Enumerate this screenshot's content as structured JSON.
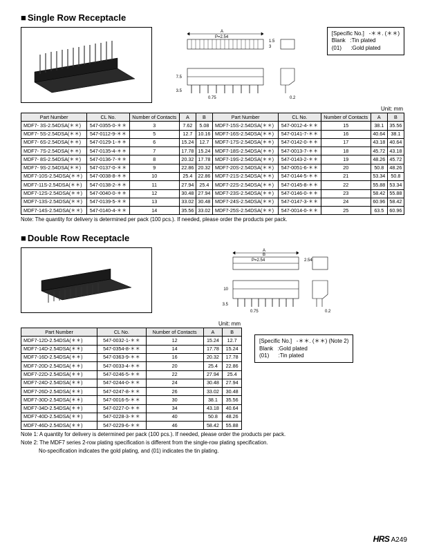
{
  "section1": {
    "title": "Single Row Receptacle",
    "specbox": {
      "l1": "[Specific No.]   -＊＊. (＊＊)",
      "l2": "Blank   :Tin plated",
      "l3": "(01)      :Gold plated"
    },
    "unit": "Unit: mm",
    "headers": [
      "Part Number",
      "CL No.",
      "Number of Contacts",
      "A",
      "B",
      "Part Number",
      "CL No.",
      "Number of Contacts",
      "A",
      "B"
    ],
    "rows": [
      [
        "MDF7-  3S-2.54DSA(＊＊)",
        "547-0355-0-＊＊",
        "3",
        "7.62",
        "5.08",
        "MDF7-15S-2.54DSA(＊＊)",
        "547-0012-4-＊＊",
        "15",
        "38.1",
        "35.56"
      ],
      [
        "MDF7-  5S-2.54DSA(＊＊)",
        "547-0112-9-＊＊",
        "5",
        "12.7",
        "10.16",
        "MDF7-16S-2.54DSA(＊＊)",
        "547-0141-7-＊＊",
        "16",
        "40.64",
        "38.1"
      ],
      [
        "MDF7-  6S-2.54DSA(＊＊)",
        "547-0129-1-＊＊",
        "6",
        "15.24",
        "12.7",
        "MDF7-17S-2.54DSA(＊＊)",
        "547-0142-0-＊＊",
        "17",
        "43.18",
        "40.64"
      ],
      [
        "MDF7-  7S-2.54DSA(＊＊)",
        "547-0135-4-＊＊",
        "7",
        "17.78",
        "15.24",
        "MDF7-18S-2.54DSA(＊＊)",
        "547-0013-7-＊＊",
        "18",
        "45.72",
        "43.18"
      ],
      [
        "MDF7-  8S-2.54DSA(＊＊)",
        "547-0136-7-＊＊",
        "8",
        "20.32",
        "17.78",
        "MDF7-19S-2.54DSA(＊＊)",
        "547-0143-2-＊＊",
        "19",
        "48.26",
        "45.72"
      ],
      [
        "MDF7-  9S-2.54DSA(＊＊)",
        "547-0137-0-＊＊",
        "9",
        "22.86",
        "20.32",
        "MDF7-20S-2.54DSA(＊＊)",
        "547-0051-6-＊＊",
        "20",
        "50.8",
        "48.26"
      ],
      [
        "MDF7-10S-2.54DSA(＊＊)",
        "547-0038-8-＊＊",
        "10",
        "25.4",
        "22.86",
        "MDF7-21S-2.54DSA(＊＊)",
        "547-0144-5-＊＊",
        "21",
        "53.34",
        "50.8"
      ],
      [
        "MDF7-11S-2.54DSA(＊＊)",
        "547-0138-2-＊＊",
        "11",
        "27.94",
        "25.4",
        "MDF7-22S-2.54DSA(＊＊)",
        "547-0145-8-＊＊",
        "22",
        "55.88",
        "53.34"
      ],
      [
        "MDF7-12S-2.54DSA(＊＊)",
        "547-0040-0-＊＊",
        "12",
        "30.48",
        "27.94",
        "MDF7-23S-2.54DSA(＊＊)",
        "547-0146-0-＊＊",
        "23",
        "58.42",
        "55.88"
      ],
      [
        "MDF7-13S-2.54DSA(＊＊)",
        "547-0139-5-＊＊",
        "13",
        "33.02",
        "30.48",
        "MDF7-24S-2.54DSA(＊＊)",
        "547-0147-3-＊＊",
        "24",
        "60.96",
        "58.42"
      ],
      [
        "MDF7-14S-2.54DSA(＊＊)",
        "547-0140-4-＊＊",
        "14",
        "35.56",
        "33.02",
        "MDF7-25S-2.54DSA(＊＊)",
        "547-0014-0-＊＊",
        "25",
        "63.5",
        "60.96"
      ]
    ],
    "note": "Note: The quantity for delivery is determined per pack (100 pcs.). If needed, please order the products per pack.",
    "dims": {
      "A": "A",
      "B": "B",
      "P": "P=2.54",
      "h75": "7.5",
      "h35": "3.5",
      "w075": "0.75",
      "w02": "0.2",
      "t15": "1.5",
      "t3": "3"
    }
  },
  "section2": {
    "title": "Double Row Receptacle",
    "unit": "Unit: mm",
    "headers": [
      "Part Number",
      "CL No.",
      "Number of Contacts",
      "A",
      "B"
    ],
    "rows": [
      [
        "MDF7-12D-2.54DSA(＊＊)",
        "547-0032-1-＊＊",
        "12",
        "15.24",
        "12.7"
      ],
      [
        "MDF7-14D-2.54DSA(＊＊)",
        "547-0354-8-＊＊",
        "14",
        "17.78",
        "15.24"
      ],
      [
        "MDF7-16D-2.54DSA(＊＊)",
        "547-0363-9-＊＊",
        "16",
        "20.32",
        "17.78"
      ],
      [
        "MDF7-20D-2.54DSA(＊＊)",
        "547-0033-4-＊＊",
        "20",
        "25.4",
        "22.86"
      ],
      [
        "MDF7-22D-2.54DSA(＊＊)",
        "547-0246-5-＊＊",
        "22",
        "27.94",
        "25.4"
      ],
      [
        "MDF7-24D-2.54DSA(＊＊)",
        "547-0244-0-＊＊",
        "24",
        "30.48",
        "27.94"
      ],
      [
        "MDF7-26D-2.54DSA(＊＊)",
        "547-0247-8-＊＊",
        "26",
        "33.02",
        "30.48"
      ],
      [
        "MDF7-30D-2.54DSA(＊＊)",
        "547-0016-5-＊＊",
        "30",
        "38.1",
        "35.56"
      ],
      [
        "MDF7-34D-2.54DSA(＊＊)",
        "547-0227-0-＊＊",
        "34",
        "43.18",
        "40.64"
      ],
      [
        "MDF7-40D-2.54DSA(＊＊)",
        "547-0228-3-＊＊",
        "40",
        "50.8",
        "48.26"
      ],
      [
        "MDF7-46D-2.54DSA(＊＊)",
        "547-0229-6-＊＊",
        "46",
        "58.42",
        "55.88"
      ]
    ],
    "specbox": {
      "l1": "[Specific No.]   -＊＊. (＊＊) (Note 2)",
      "l2": "Blank   :Gold plated",
      "l3": "(01)      :Tin plated"
    },
    "note1": "Note 1: A quantity for delivery is determined per pack (100 pcs.). If needed, please order the products per pack.",
    "note2": "Note 2: The MDF7 series 2-row plating specification is different from the single-row plating specification.",
    "note2b": "            No-specification indicates the gold plating, and (01) indicates the tin plating.",
    "dims": {
      "A": "A",
      "B": "B",
      "P": "P=2.54",
      "h10": "10",
      "h35": "3.5",
      "w075": "0.75",
      "w02": "0.2",
      "t254": "2.54"
    }
  },
  "footer": {
    "hrs": "HRS",
    "page": "A249"
  }
}
